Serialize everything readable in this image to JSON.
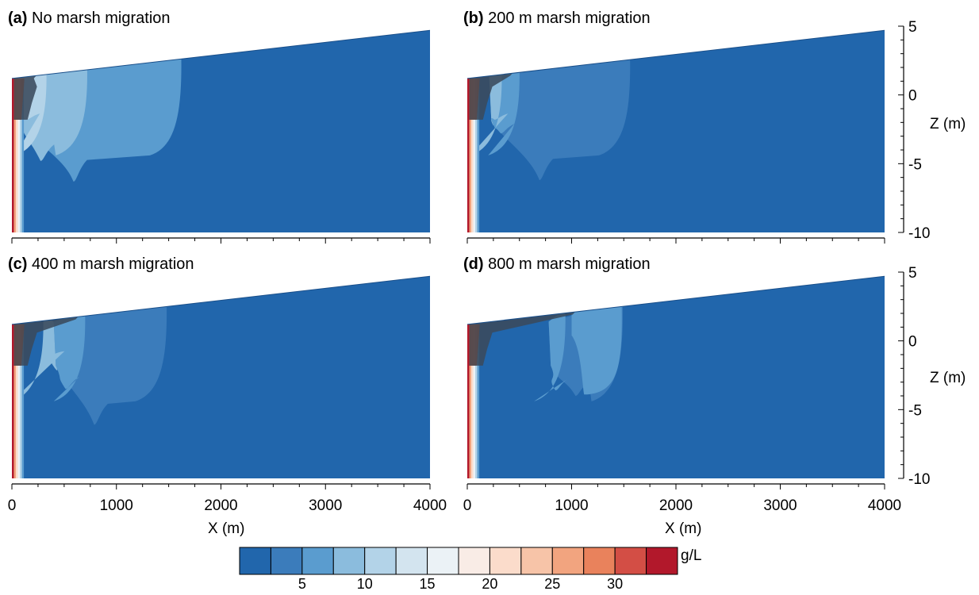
{
  "chart_data": {
    "type": "heatmap",
    "xlabel": "X (m)",
    "ylabel": "Z (m)",
    "xlim": [
      0,
      4000
    ],
    "ylim": [
      -10,
      5
    ],
    "x_ticks": [
      "0",
      "1000",
      "2000",
      "3000",
      "4000"
    ],
    "z_ticks": [
      "5",
      "0",
      "-5",
      "-10"
    ],
    "panels": [
      {
        "label": "(a)",
        "title": "No marsh migration",
        "migration_m": 0
      },
      {
        "label": "(b)",
        "title": "200 m marsh migration",
        "migration_m": 200
      },
      {
        "label": "(c)",
        "title": "400 m marsh migration",
        "migration_m": 400
      },
      {
        "label": "(d)",
        "title": "800 m marsh migration",
        "migration_m": 800
      }
    ],
    "colorbar": {
      "unit": "g/L",
      "tick_labels": [
        "5",
        "10",
        "15",
        "20",
        "25",
        "30"
      ],
      "tick_values": [
        5,
        10,
        15,
        20,
        25,
        30
      ],
      "bounds": [
        0,
        35
      ],
      "colors": [
        "#2166ac",
        "#3b7cbb",
        "#5a9ccf",
        "#8bbcdd",
        "#b3d3e8",
        "#d3e4ef",
        "#ebf2f6",
        "#f9ece6",
        "#fbdccb",
        "#f7c4a8",
        "#f2a47f",
        "#e9825c",
        "#d34e45",
        "#b2182b"
      ]
    },
    "colors": {
      "background": "#2166ac",
      "marsh": "#3a4a5c"
    }
  }
}
